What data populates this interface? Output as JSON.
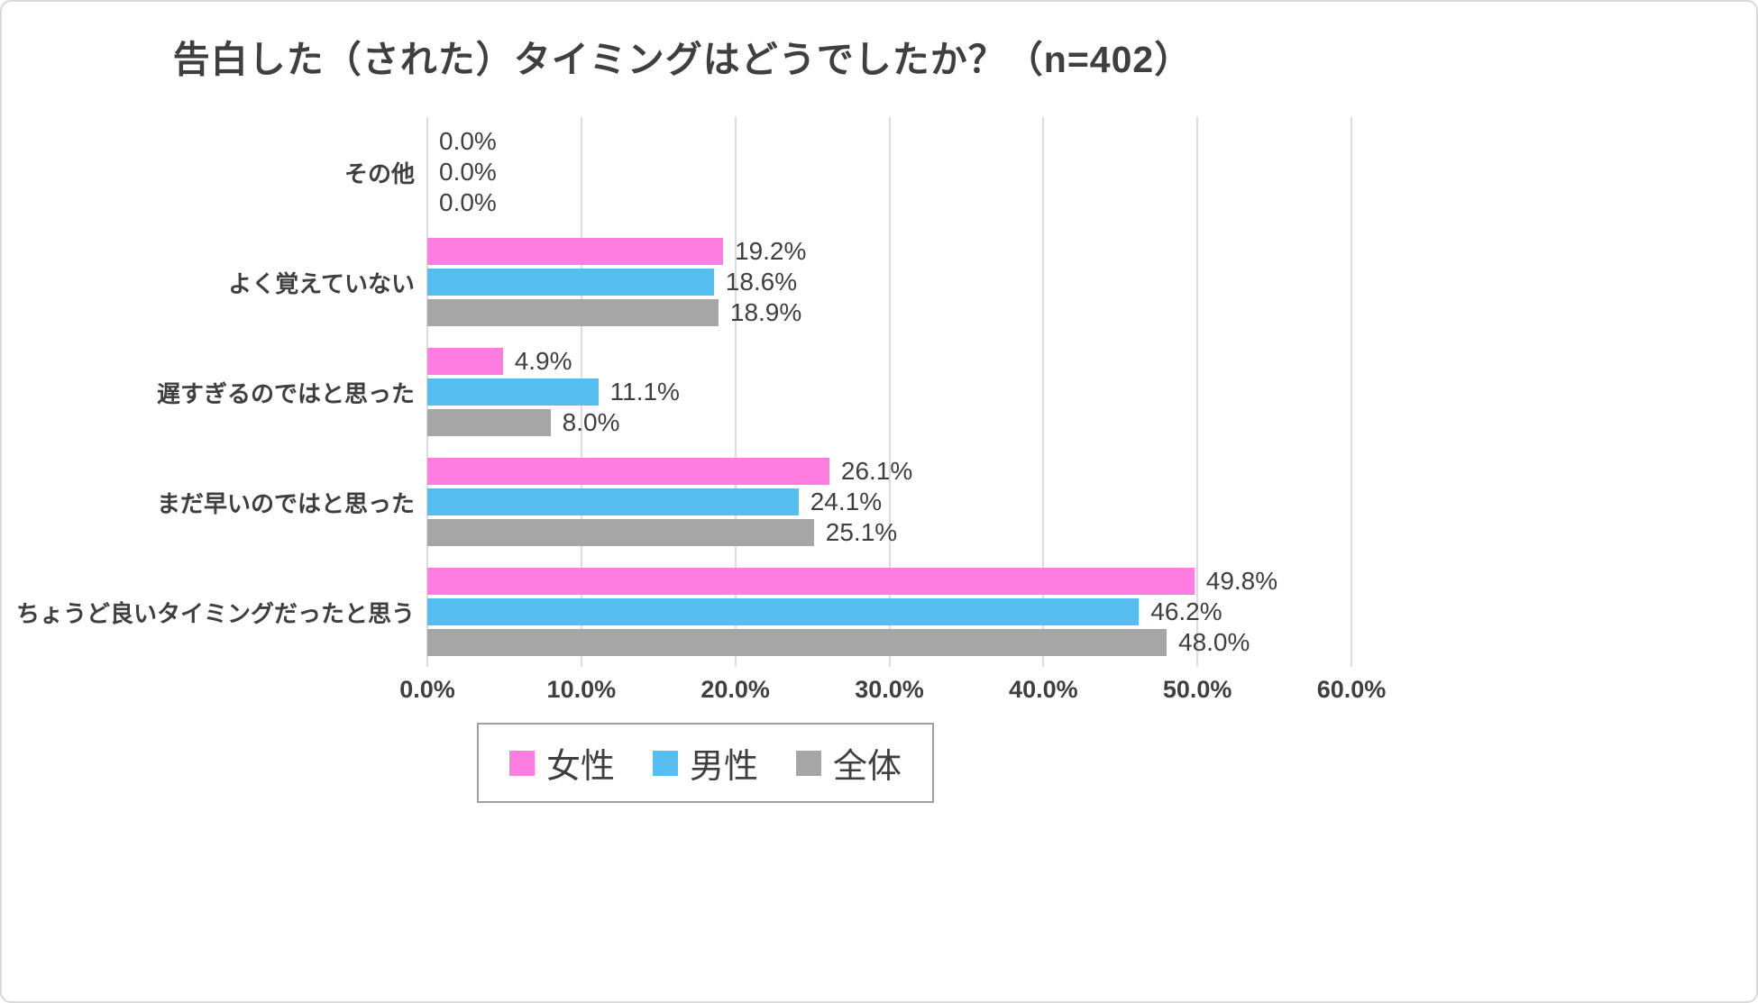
{
  "chart_data": {
    "type": "bar",
    "orientation": "horizontal",
    "title": "告白した（された）タイミングはどうでしたか？（n=402）",
    "sample_size_note": "n=402",
    "categories": [
      "その他",
      "よく覚えていない",
      "遅すぎるのではと思った",
      "まだ早いのではと思った",
      "ちょうど良いタイミングだったと思う"
    ],
    "series": [
      {
        "key": "female",
        "name": "女性",
        "color": "#FF7DE1",
        "values": [
          0.0,
          19.2,
          4.9,
          26.1,
          49.8
        ]
      },
      {
        "key": "male",
        "name": "男性",
        "color": "#55BDF0",
        "values": [
          0.0,
          18.6,
          11.1,
          24.1,
          46.2
        ]
      },
      {
        "key": "total",
        "name": "全体",
        "color": "#A6A6A6",
        "values": [
          0.0,
          18.9,
          8.0,
          25.1,
          48.0
        ]
      }
    ],
    "value_labels": [
      [
        "0.0%",
        "0.0%",
        "0.0%"
      ],
      [
        "19.2%",
        "18.6%",
        "18.9%"
      ],
      [
        "4.9%",
        "11.1%",
        "8.0%"
      ],
      [
        "26.1%",
        "24.1%",
        "25.1%"
      ],
      [
        "49.8%",
        "46.2%",
        "48.0%"
      ]
    ],
    "x_ticks": [
      "0.0%",
      "10.0%",
      "20.0%",
      "30.0%",
      "40.0%",
      "50.0%",
      "60.0%"
    ],
    "xlim": [
      0,
      60
    ],
    "grid": true,
    "legend_position": "bottom"
  },
  "colors": {
    "text": "#3f3f3f",
    "gridline": "#dcdcdc",
    "figure_border": "#d9d9d9",
    "legend_border": "#9e9e9e"
  }
}
